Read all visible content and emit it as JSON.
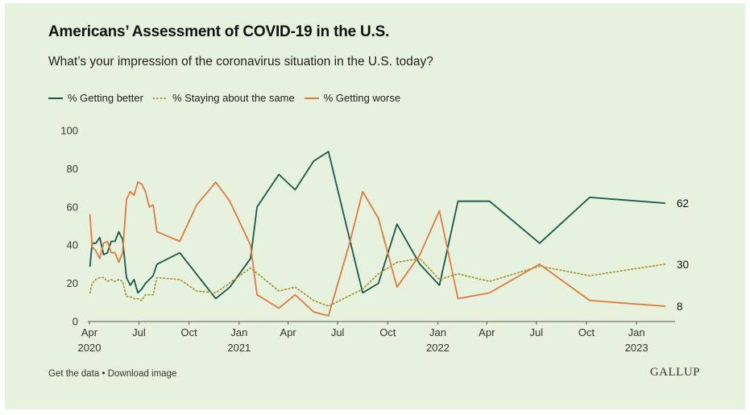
{
  "title": "Americans’ Assessment of COVID-19 in the U.S.",
  "subtitle": "What’s your impression of the coronavirus situation in the U.S. today?",
  "footer": {
    "get_data": "Get the data",
    "separator": " • ",
    "download": "Download image"
  },
  "logo": "GALLUP",
  "colors": {
    "background": "#e6f2de",
    "better": "#17594a",
    "same": "#a8902f",
    "worse": "#e07b3c"
  },
  "chart_data": {
    "type": "line",
    "title": "Americans’ Assessment of COVID-19 in the U.S.",
    "subtitle": "What’s your impression of the coronavirus situation in the U.S. today?",
    "xlabel": "",
    "ylabel": "",
    "ylim": [
      0,
      100
    ],
    "xlim": [
      "2020-04-01",
      "2023-03-01"
    ],
    "y_ticks": [
      0,
      20,
      40,
      60,
      80,
      100
    ],
    "x_ticks": [
      {
        "date": "2020-04-01",
        "label": "Apr",
        "year": "2020"
      },
      {
        "date": "2020-07-01",
        "label": "Jul",
        "year": ""
      },
      {
        "date": "2020-10-01",
        "label": "Oct",
        "year": ""
      },
      {
        "date": "2021-01-01",
        "label": "Jan",
        "year": "2021"
      },
      {
        "date": "2021-04-01",
        "label": "Apr",
        "year": ""
      },
      {
        "date": "2021-07-01",
        "label": "Jul",
        "year": ""
      },
      {
        "date": "2021-10-01",
        "label": "Oct",
        "year": ""
      },
      {
        "date": "2022-01-01",
        "label": "Jan",
        "year": "2022"
      },
      {
        "date": "2022-04-01",
        "label": "Apr",
        "year": ""
      },
      {
        "date": "2022-07-01",
        "label": "Jul",
        "year": ""
      },
      {
        "date": "2022-10-01",
        "label": "Oct",
        "year": ""
      },
      {
        "date": "2023-01-01",
        "label": "Jan",
        "year": "2023"
      }
    ],
    "grid": false,
    "legend_position": "top-left",
    "series": [
      {
        "name": "% Getting better",
        "color": "#17594a",
        "style": "solid",
        "end_label": "62",
        "points": [
          [
            "2020-04-02",
            29
          ],
          [
            "2020-04-06",
            41
          ],
          [
            "2020-04-13",
            41
          ],
          [
            "2020-04-20",
            44
          ],
          [
            "2020-04-27",
            35
          ],
          [
            "2020-05-04",
            36
          ],
          [
            "2020-05-11",
            42
          ],
          [
            "2020-05-18",
            42
          ],
          [
            "2020-05-25",
            47
          ],
          [
            "2020-06-01",
            43
          ],
          [
            "2020-06-08",
            23
          ],
          [
            "2020-06-15",
            19
          ],
          [
            "2020-06-22",
            22
          ],
          [
            "2020-06-29",
            15
          ],
          [
            "2020-07-06",
            17
          ],
          [
            "2020-07-13",
            20
          ],
          [
            "2020-07-27",
            24
          ],
          [
            "2020-08-03",
            30
          ],
          [
            "2020-09-14",
            36
          ],
          [
            "2020-11-19",
            12
          ],
          [
            "2020-12-15",
            18
          ],
          [
            "2021-01-22",
            33
          ],
          [
            "2021-02-03",
            60
          ],
          [
            "2021-03-15",
            77
          ],
          [
            "2021-04-14",
            69
          ],
          [
            "2021-05-18",
            84
          ],
          [
            "2021-06-14",
            89
          ],
          [
            "2021-08-16",
            15
          ],
          [
            "2021-09-14",
            20
          ],
          [
            "2021-10-18",
            51
          ],
          [
            "2021-11-29",
            30
          ],
          [
            "2022-01-04",
            19
          ],
          [
            "2022-02-07",
            63
          ],
          [
            "2022-04-06",
            63
          ],
          [
            "2022-07-07",
            41
          ],
          [
            "2022-10-07",
            65
          ],
          [
            "2023-02-22",
            62
          ]
        ]
      },
      {
        "name": "% Staying about the same",
        "color": "#a8902f",
        "style": "dotted",
        "end_label": "30",
        "points": [
          [
            "2020-04-02",
            15
          ],
          [
            "2020-04-06",
            20
          ],
          [
            "2020-04-13",
            22
          ],
          [
            "2020-04-20",
            23
          ],
          [
            "2020-04-27",
            23
          ],
          [
            "2020-05-04",
            21
          ],
          [
            "2020-05-11",
            22
          ],
          [
            "2020-05-18",
            21
          ],
          [
            "2020-05-25",
            22
          ],
          [
            "2020-06-01",
            21
          ],
          [
            "2020-06-08",
            13
          ],
          [
            "2020-06-15",
            13
          ],
          [
            "2020-06-22",
            12
          ],
          [
            "2020-06-29",
            12
          ],
          [
            "2020-07-06",
            11
          ],
          [
            "2020-07-13",
            14
          ],
          [
            "2020-07-27",
            14
          ],
          [
            "2020-08-03",
            23
          ],
          [
            "2020-09-14",
            22
          ],
          [
            "2020-10-15",
            16
          ],
          [
            "2020-11-19",
            15
          ],
          [
            "2021-01-22",
            28
          ],
          [
            "2021-03-15",
            16
          ],
          [
            "2021-04-14",
            18
          ],
          [
            "2021-05-18",
            11
          ],
          [
            "2021-06-14",
            8
          ],
          [
            "2021-08-16",
            17
          ],
          [
            "2021-09-14",
            25
          ],
          [
            "2021-10-18",
            31
          ],
          [
            "2021-11-29",
            33
          ],
          [
            "2022-01-04",
            22
          ],
          [
            "2022-02-07",
            25
          ],
          [
            "2022-04-06",
            21
          ],
          [
            "2022-07-07",
            29
          ],
          [
            "2022-10-07",
            24
          ],
          [
            "2023-02-22",
            30
          ]
        ]
      },
      {
        "name": "% Getting worse",
        "color": "#e07b3c",
        "style": "solid",
        "end_label": "8",
        "points": [
          [
            "2020-04-02",
            56
          ],
          [
            "2020-04-06",
            39
          ],
          [
            "2020-04-13",
            37
          ],
          [
            "2020-04-20",
            33
          ],
          [
            "2020-04-27",
            41
          ],
          [
            "2020-05-04",
            42
          ],
          [
            "2020-05-11",
            36
          ],
          [
            "2020-05-18",
            36
          ],
          [
            "2020-05-25",
            31
          ],
          [
            "2020-06-01",
            36
          ],
          [
            "2020-06-08",
            64
          ],
          [
            "2020-06-15",
            68
          ],
          [
            "2020-06-22",
            66
          ],
          [
            "2020-06-29",
            73
          ],
          [
            "2020-07-06",
            72
          ],
          [
            "2020-07-13",
            68
          ],
          [
            "2020-07-20",
            60
          ],
          [
            "2020-07-27",
            61
          ],
          [
            "2020-08-03",
            47
          ],
          [
            "2020-09-14",
            42
          ],
          [
            "2020-10-15",
            61
          ],
          [
            "2020-11-19",
            73
          ],
          [
            "2020-12-15",
            63
          ],
          [
            "2021-01-22",
            40
          ],
          [
            "2021-02-03",
            14
          ],
          [
            "2021-03-15",
            7
          ],
          [
            "2021-04-14",
            14
          ],
          [
            "2021-05-18",
            5
          ],
          [
            "2021-06-14",
            3
          ],
          [
            "2021-07-22",
            40
          ],
          [
            "2021-08-16",
            68
          ],
          [
            "2021-09-14",
            54
          ],
          [
            "2021-10-18",
            18
          ],
          [
            "2021-11-29",
            35
          ],
          [
            "2022-01-04",
            58
          ],
          [
            "2022-02-07",
            12
          ],
          [
            "2022-04-06",
            15
          ],
          [
            "2022-07-07",
            30
          ],
          [
            "2022-10-07",
            11
          ],
          [
            "2023-02-22",
            8
          ]
        ]
      }
    ]
  }
}
